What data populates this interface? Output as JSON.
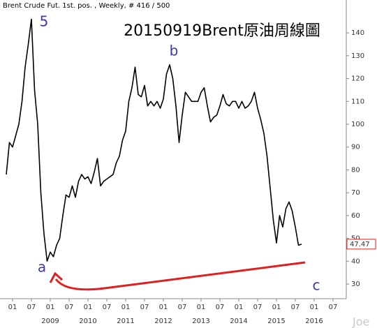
{
  "chart_data": {
    "type": "line",
    "header": "Brent Crude Fut. 1st. pos. , Weekly, # 416 / 500",
    "title": "20150919Brent原油周線圖",
    "annotations": [
      "5",
      "b",
      "a",
      "c"
    ],
    "watermark": "Joe",
    "last_price": 47.47,
    "x": [
      "2007-11",
      "2007-12",
      "2008-01",
      "2008-02",
      "2008-03",
      "2008-04",
      "2008-05",
      "2008-06",
      "2008-07",
      "2008-08",
      "2008-09",
      "2008-10",
      "2008-11",
      "2008-12",
      "2009-01",
      "2009-02",
      "2009-03",
      "2009-04",
      "2009-05",
      "2009-06",
      "2009-07",
      "2009-08",
      "2009-09",
      "2009-10",
      "2009-11",
      "2009-12",
      "2010-01",
      "2010-02",
      "2010-03",
      "2010-04",
      "2010-05",
      "2010-06",
      "2010-07",
      "2010-08",
      "2010-09",
      "2010-10",
      "2010-11",
      "2010-12",
      "2011-01",
      "2011-02",
      "2011-03",
      "2011-04",
      "2011-05",
      "2011-06",
      "2011-07",
      "2011-08",
      "2011-09",
      "2011-10",
      "2011-11",
      "2011-12",
      "2012-01",
      "2012-02",
      "2012-03",
      "2012-04",
      "2012-05",
      "2012-06",
      "2012-07",
      "2012-08",
      "2012-09",
      "2012-10",
      "2012-11",
      "2012-12",
      "2013-01",
      "2013-02",
      "2013-03",
      "2013-04",
      "2013-05",
      "2013-06",
      "2013-07",
      "2013-08",
      "2013-09",
      "2013-10",
      "2013-11",
      "2013-12",
      "2014-01",
      "2014-02",
      "2014-03",
      "2014-04",
      "2014-05",
      "2014-06",
      "2014-07",
      "2014-08",
      "2014-09",
      "2014-10",
      "2014-11",
      "2014-12",
      "2015-01",
      "2015-02",
      "2015-03",
      "2015-04",
      "2015-05",
      "2015-06",
      "2015-07",
      "2015-08",
      "2015-09"
    ],
    "series": [
      {
        "name": "Brent",
        "color": "#000000",
        "values": [
          78,
          92,
          90,
          95,
          100,
          110,
          125,
          135,
          146,
          115,
          100,
          70,
          52,
          40,
          44,
          42,
          47,
          50,
          60,
          69,
          68,
          73,
          68,
          75,
          78,
          76,
          77,
          74,
          79,
          85,
          73,
          75,
          76,
          77,
          78,
          83,
          86,
          93,
          97,
          110,
          116,
          125,
          113,
          112,
          117,
          108,
          110,
          108,
          110,
          107,
          111,
          122,
          126,
          120,
          108,
          92,
          104,
          114,
          112,
          110,
          110,
          110,
          114,
          116,
          108,
          101,
          103,
          104,
          108,
          113,
          109,
          108,
          110,
          110,
          107,
          110,
          107,
          108,
          110,
          114,
          107,
          102,
          96,
          86,
          72,
          58,
          48,
          60,
          55,
          63,
          66,
          62,
          55,
          47,
          47.47
        ]
      }
    ],
    "xlim": [
      "2007-09",
      "2016-11"
    ],
    "ylim": [
      23.6,
      154.4
    ],
    "yticks": [
      30,
      40,
      50,
      60,
      70,
      80,
      90,
      100,
      110,
      120,
      130,
      140
    ],
    "xticks": [
      {
        "value": "2008-01",
        "label": "01"
      },
      {
        "value": "2008-07",
        "label": "07"
      },
      {
        "value": "2009-01",
        "label": "01"
      },
      {
        "value": "2009-07",
        "label": "07"
      },
      {
        "value": "2010-01",
        "label": "01"
      },
      {
        "value": "2010-07",
        "label": "07"
      },
      {
        "value": "2011-01",
        "label": "01"
      },
      {
        "value": "2011-07",
        "label": "07"
      },
      {
        "value": "2012-01",
        "label": "01"
      },
      {
        "value": "2012-07",
        "label": "07"
      },
      {
        "value": "2013-01",
        "label": "01"
      },
      {
        "value": "2013-07",
        "label": "07"
      },
      {
        "value": "2014-01",
        "label": "01"
      },
      {
        "value": "2014-07",
        "label": "07"
      },
      {
        "value": "2015-01",
        "label": "01"
      },
      {
        "value": "2015-07",
        "label": "07"
      },
      {
        "value": "2016-01",
        "label": "01"
      },
      {
        "value": "2016-07",
        "label": "07"
      }
    ],
    "year_labels": [
      {
        "value": "2009-01",
        "label": "2009"
      },
      {
        "value": "2010-01",
        "label": "2010"
      },
      {
        "value": "2011-01",
        "label": "2011"
      },
      {
        "value": "2012-01",
        "label": "2012"
      },
      {
        "value": "2013-01",
        "label": "2013"
      },
      {
        "value": "2014-01",
        "label": "2014"
      },
      {
        "value": "2015-01",
        "label": "2015"
      },
      {
        "value": "2016-01",
        "label": "2016"
      }
    ]
  }
}
